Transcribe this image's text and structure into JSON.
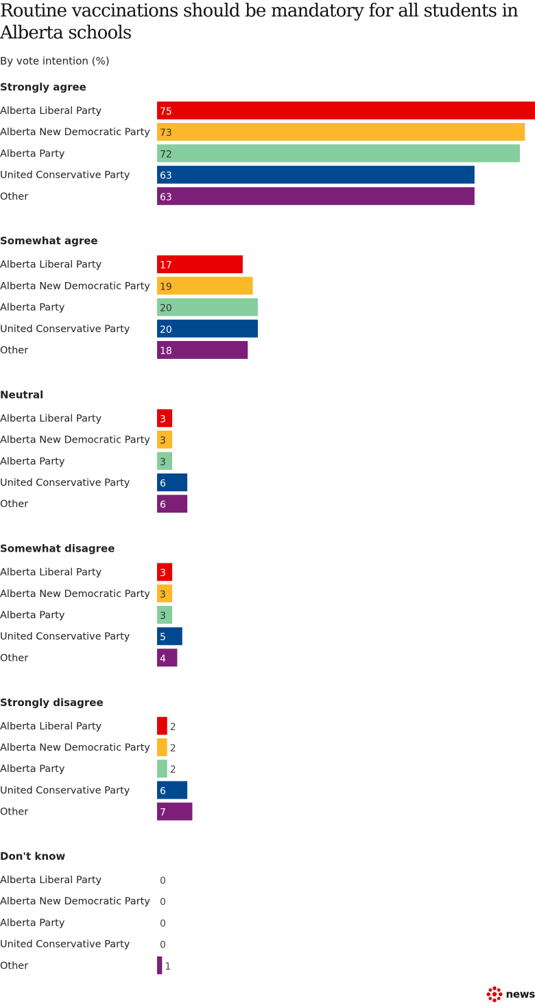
{
  "title": "Routine vaccinations should be mandatory for all students in Alberta schools",
  "subtitle": "By vote intention (%)",
  "brand": "news",
  "colors": {
    "Alberta Liberal Party": "#e60000",
    "Alberta New Democratic Party": "#fbb829",
    "Alberta Party": "#86ce9e",
    "United Conservative Party": "#004990",
    "Other": "#7d1f78"
  },
  "chart_data": {
    "type": "bar",
    "orientation": "horizontal",
    "xlim": [
      0,
      75
    ],
    "series_names": [
      "Alberta Liberal Party",
      "Alberta New Democratic Party",
      "Alberta Party",
      "United Conservative Party",
      "Other"
    ],
    "groups": [
      {
        "label": "Strongly agree",
        "values": [
          75,
          73,
          72,
          63,
          63
        ]
      },
      {
        "label": "Somewhat agree",
        "values": [
          17,
          19,
          20,
          20,
          18
        ]
      },
      {
        "label": "Neutral",
        "values": [
          3,
          3,
          3,
          6,
          6
        ]
      },
      {
        "label": "Somewhat disagree",
        "values": [
          3,
          3,
          3,
          5,
          4
        ]
      },
      {
        "label": "Strongly disagree",
        "values": [
          2,
          2,
          2,
          6,
          7
        ]
      },
      {
        "label": "Don't know",
        "values": [
          0,
          0,
          0,
          0,
          1
        ]
      }
    ]
  }
}
